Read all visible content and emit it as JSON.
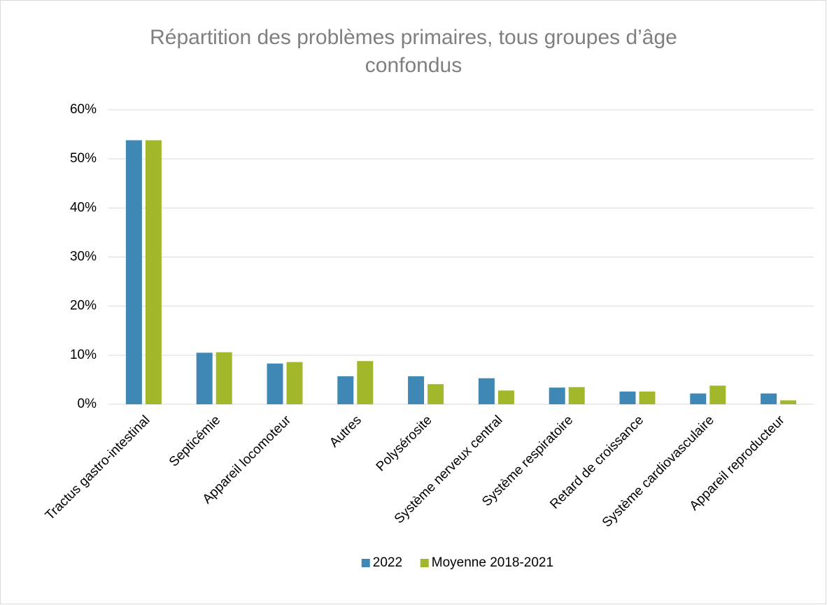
{
  "chart_data": {
    "type": "bar",
    "title": "Répartition des problèmes primaires, tous groupes d’âge confondus",
    "categories": [
      "Tractus gastro-intestinal",
      "Septicémie",
      "Appareil locomoteur",
      "Autres",
      "Polysérosite",
      "Système nerveux central",
      "Système respiratoire",
      "Retard de croissance",
      "Système cardiovasculaire",
      "Appareil reproducteur"
    ],
    "series": [
      {
        "name": "2022",
        "color": "#3f88b5",
        "values": [
          53.8,
          10.5,
          8.3,
          5.7,
          5.7,
          5.3,
          3.4,
          2.6,
          2.2,
          2.2
        ]
      },
      {
        "name": "Moyenne 2018-2021",
        "color": "#a3b72a",
        "values": [
          53.8,
          10.6,
          8.6,
          8.8,
          4.1,
          2.8,
          3.5,
          2.6,
          3.8,
          0.8
        ]
      }
    ],
    "ylim": [
      0,
      60
    ],
    "yticks": [
      {
        "value": 0,
        "label": "0%"
      },
      {
        "value": 10,
        "label": "10%"
      },
      {
        "value": 20,
        "label": "20%"
      },
      {
        "value": 30,
        "label": "30%"
      },
      {
        "value": 40,
        "label": "40%"
      },
      {
        "value": 50,
        "label": "50%"
      },
      {
        "value": 60,
        "label": "60%"
      }
    ],
    "grid": true,
    "legend": "bottom"
  }
}
